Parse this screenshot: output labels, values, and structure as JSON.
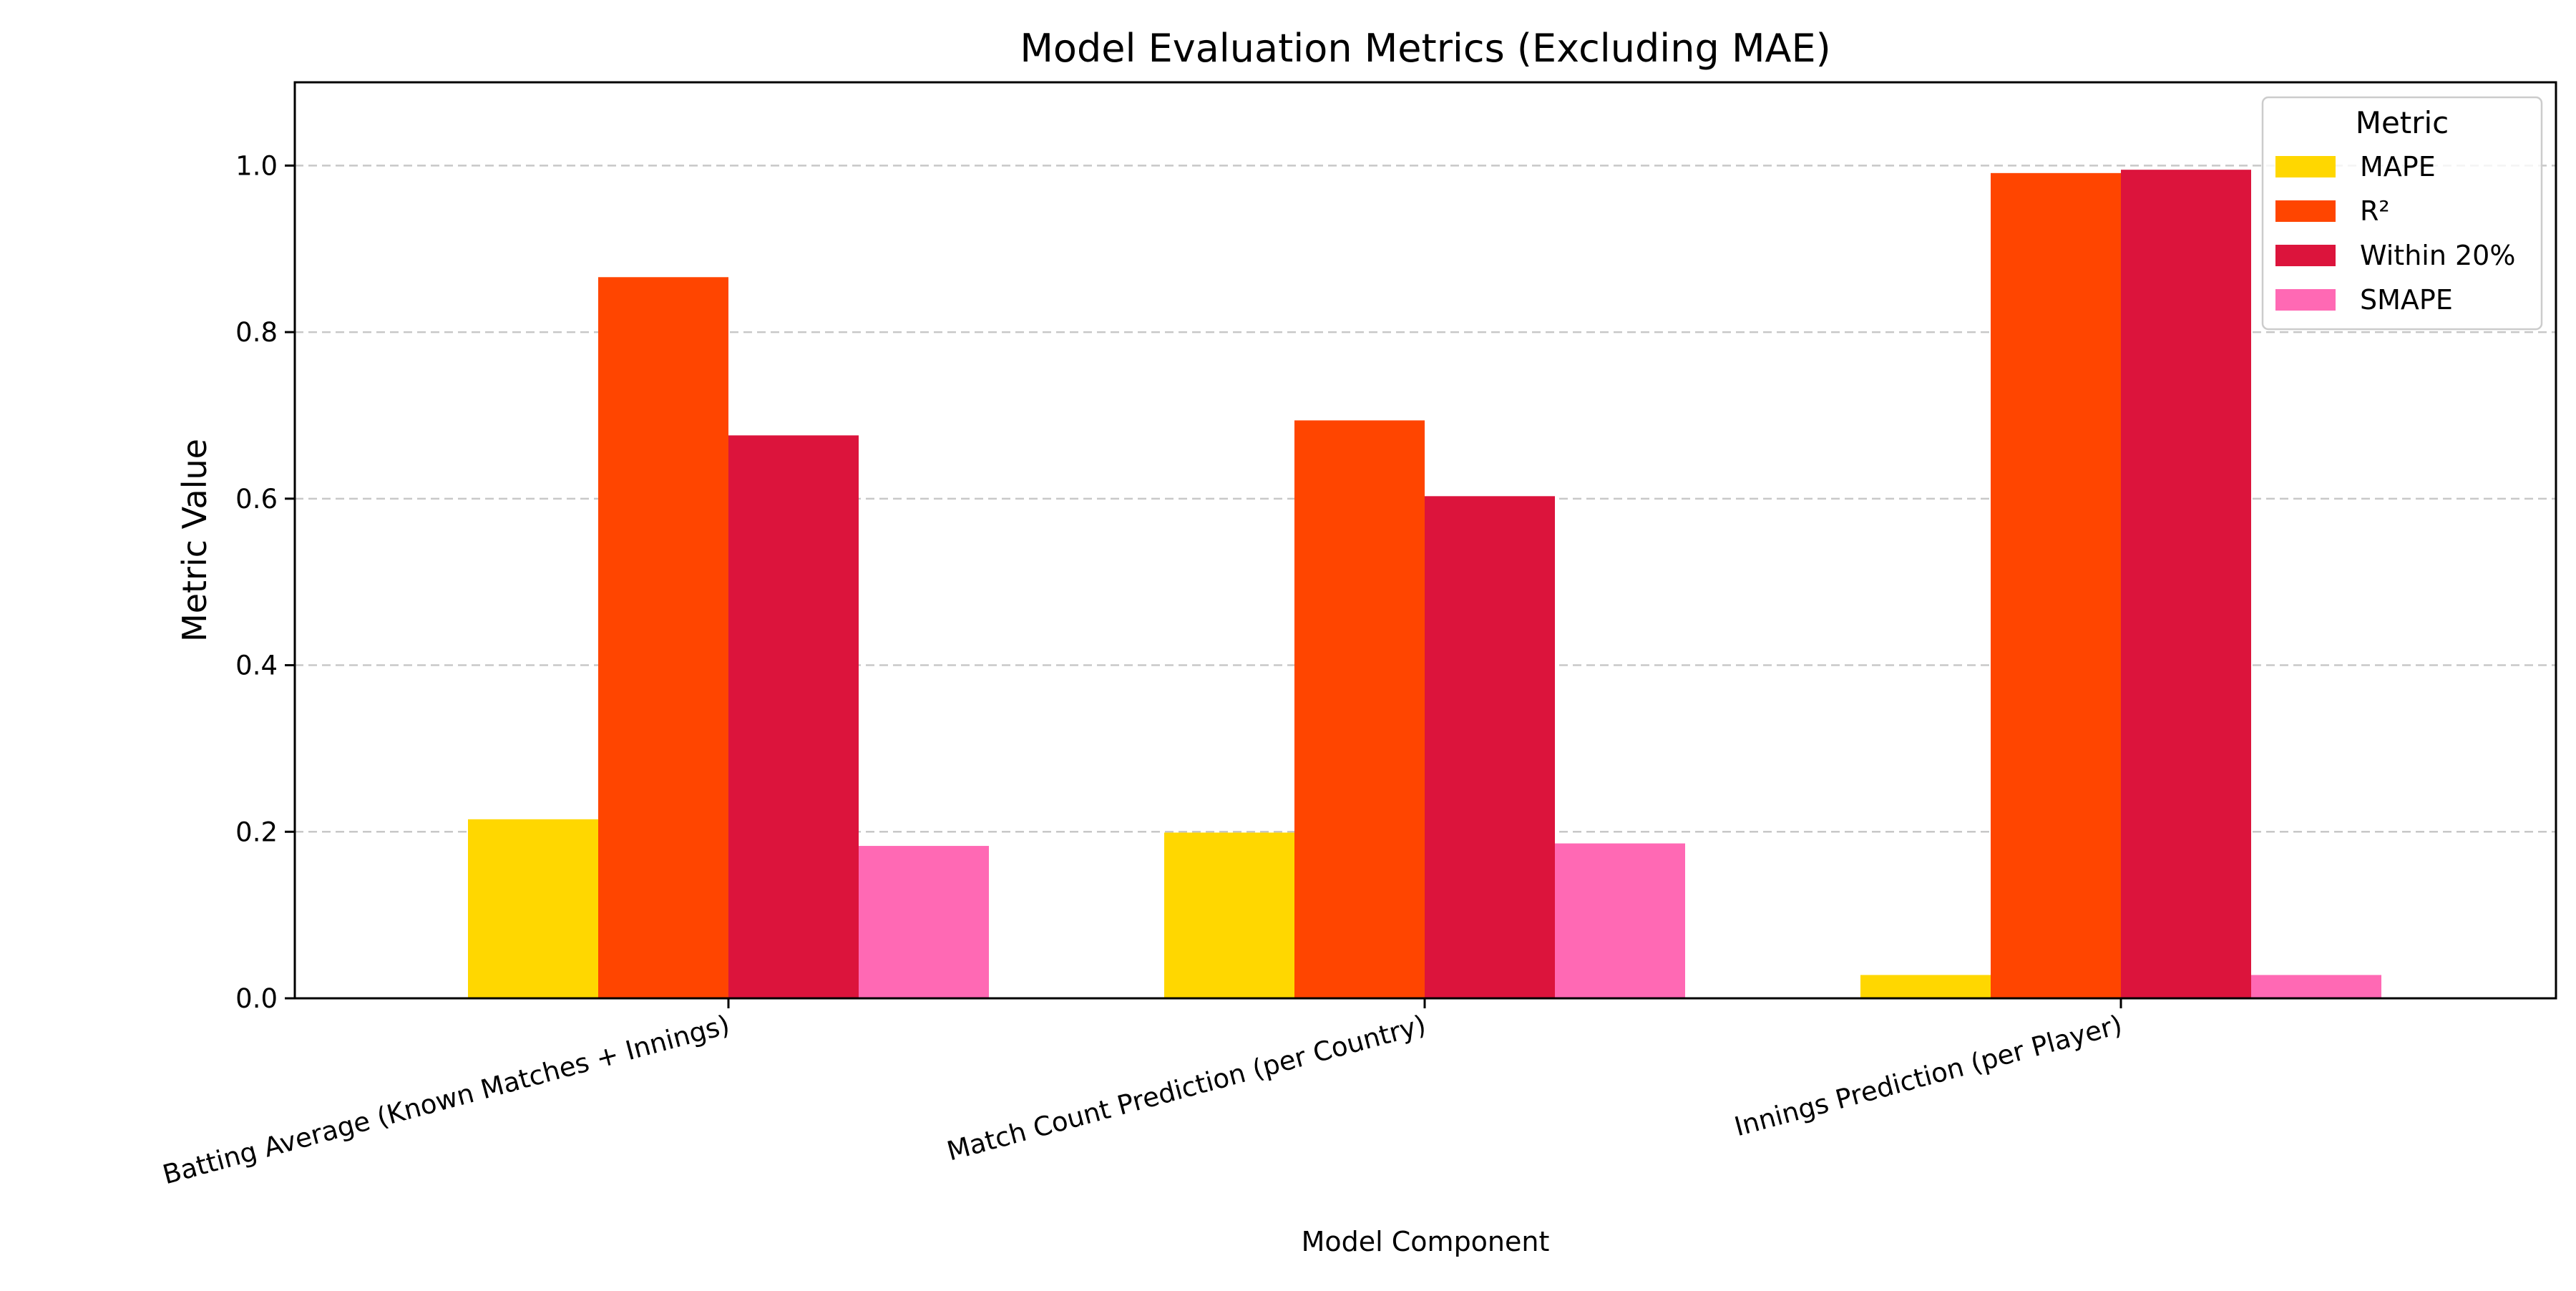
{
  "chart_data": {
    "type": "bar",
    "title": "Model Evaluation Metrics (Excluding MAE)",
    "xlabel": "Model Component",
    "ylabel": "Metric Value",
    "ylim": [
      0,
      1.1
    ],
    "yticks": [
      "0.0",
      "0.2",
      "0.4",
      "0.6",
      "0.8",
      "1.0"
    ],
    "grid": "y-dashed",
    "categories": [
      "Batting Average (Known Matches + Innings)",
      "Match Count Prediction (per Country)",
      "Innings Prediction (per Player)"
    ],
    "legend": {
      "title": "Metric",
      "placement": "top-right"
    },
    "series": [
      {
        "name": "MAPE",
        "color": "#ffd700",
        "values": [
          0.215,
          0.199,
          0.028
        ]
      },
      {
        "name": "R²",
        "color": "#ff4500",
        "values": [
          0.866,
          0.694,
          0.991
        ]
      },
      {
        "name": "Within 20%",
        "color": "#dc143c",
        "values": [
          0.676,
          0.603,
          0.995
        ]
      },
      {
        "name": "SMAPE",
        "color": "#ff69b4",
        "values": [
          0.183,
          0.186,
          0.028
        ]
      }
    ]
  }
}
